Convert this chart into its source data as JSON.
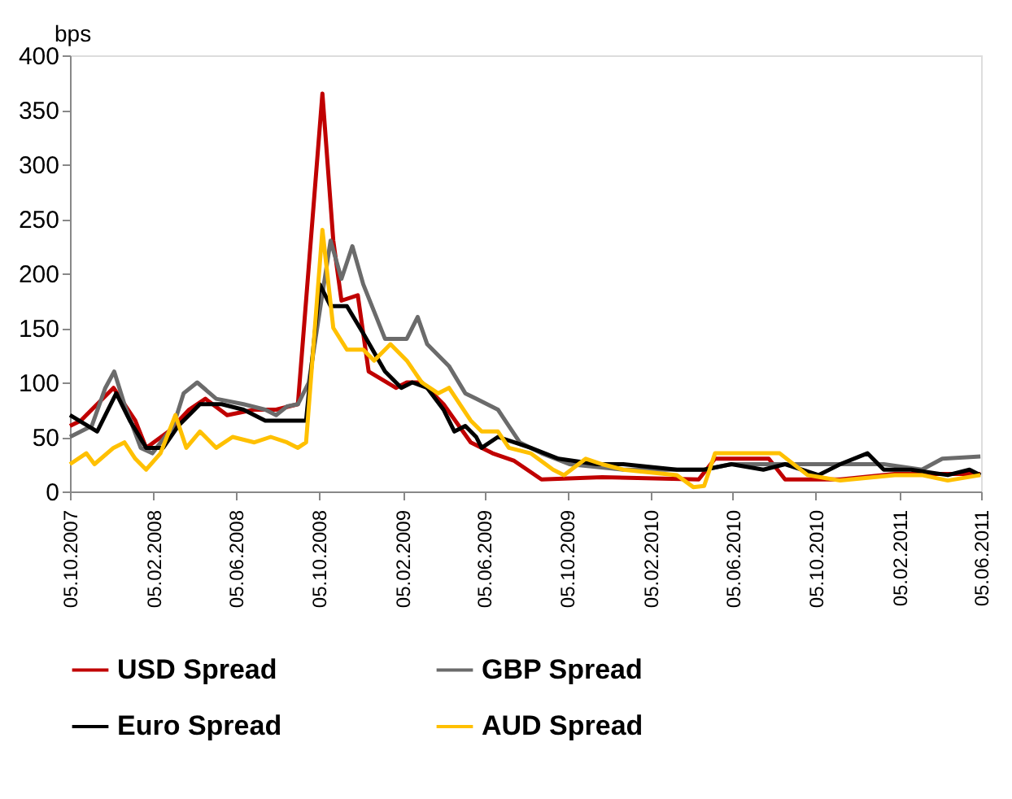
{
  "chart_data": {
    "type": "line",
    "ylabel": "bps",
    "xlim": [
      "2007-10-05",
      "2011-06-05"
    ],
    "xticks": [
      {
        "value": "2007-10-05",
        "label": "05.10.2007"
      },
      {
        "value": "2008-02-05",
        "label": "05.02.2008"
      },
      {
        "value": "2008-06-05",
        "label": "05.06.2008"
      },
      {
        "value": "2008-10-05",
        "label": "05.10.2008"
      },
      {
        "value": "2009-02-05",
        "label": "05.02.2009"
      },
      {
        "value": "2009-06-05",
        "label": "05.06.2009"
      },
      {
        "value": "2009-10-05",
        "label": "05.10.2009"
      },
      {
        "value": "2010-02-05",
        "label": "05.02.2010"
      },
      {
        "value": "2010-06-05",
        "label": "05.06.2010"
      },
      {
        "value": "2010-10-05",
        "label": "05.10.2010"
      },
      {
        "value": "2011-02-05",
        "label": "05.02.2011"
      },
      {
        "value": "2011-06-05",
        "label": "05.06.2011"
      }
    ],
    "ylim": [
      0,
      400
    ],
    "yticks": [
      0,
      50,
      100,
      150,
      200,
      250,
      300,
      350,
      400
    ],
    "grid": false,
    "legend": "bottom",
    "marker": "none",
    "line_style": "solid",
    "series": [
      {
        "name": "USD Spread",
        "color": "#c00000",
        "x": [
          "2007-10-05",
          "2007-10-21",
          "2007-12-08",
          "2008-01-09",
          "2008-01-25",
          "2008-02-27",
          "2008-03-28",
          "2008-04-21",
          "2008-05-23",
          "2008-07-02",
          "2008-08-03",
          "2008-09-04",
          "2008-10-10",
          "2008-10-26",
          "2008-11-07",
          "2008-12-01",
          "2008-12-17",
          "2009-01-26",
          "2009-02-11",
          "2009-03-05",
          "2009-04-06",
          "2009-05-16",
          "2009-06-17",
          "2009-07-19",
          "2009-08-28",
          "2009-11-25",
          "2010-04-16",
          "2010-05-10",
          "2010-07-28",
          "2010-08-21",
          "2010-11-10",
          "2011-01-29",
          "2011-06-04"
        ],
        "values": [
          60,
          65,
          95,
          65,
          40,
          55,
          75,
          85,
          70,
          75,
          75,
          80,
          365,
          230,
          175,
          180,
          110,
          95,
          100,
          100,
          80,
          45,
          35,
          28,
          11,
          13,
          11,
          30,
          30,
          11,
          11,
          16,
          16
        ]
      },
      {
        "name": "GBP Spread",
        "color": "#6b6b6b",
        "x": [
          "2007-10-05",
          "2007-11-06",
          "2007-11-26",
          "2007-12-09",
          "2007-12-24",
          "2008-01-17",
          "2008-02-03",
          "2008-03-05",
          "2008-03-20",
          "2008-04-09",
          "2008-05-07",
          "2008-06-16",
          "2008-07-18",
          "2008-08-03",
          "2008-08-19",
          "2008-09-04",
          "2008-09-20",
          "2008-10-06",
          "2008-10-22",
          "2008-11-07",
          "2008-11-23",
          "2008-12-09",
          "2008-12-25",
          "2009-01-10",
          "2009-02-11",
          "2009-02-27",
          "2009-03-13",
          "2009-04-14",
          "2009-05-08",
          "2009-05-24",
          "2009-06-25",
          "2009-07-11",
          "2009-07-27",
          "2009-08-28",
          "2009-10-08",
          "2009-12-26",
          "2010-03-15",
          "2010-04-24",
          "2010-06-03",
          "2010-08-21",
          "2010-10-01",
          "2010-11-10",
          "2011-01-13",
          "2011-03-10",
          "2011-04-09",
          "2011-06-04"
        ],
        "values": [
          50,
          60,
          95,
          110,
          80,
          40,
          35,
          60,
          90,
          100,
          85,
          80,
          75,
          70,
          78,
          80,
          100,
          165,
          230,
          195,
          225,
          190,
          165,
          140,
          140,
          160,
          135,
          115,
          90,
          85,
          75,
          60,
          45,
          35,
          25,
          20,
          20,
          20,
          25,
          25,
          25,
          25,
          25,
          20,
          30,
          32
        ]
      },
      {
        "name": "Euro Spread",
        "color": "#000000",
        "x": [
          "2007-10-05",
          "2007-11-14",
          "2007-12-12",
          "2008-01-01",
          "2008-01-25",
          "2008-02-19",
          "2008-03-12",
          "2008-04-13",
          "2008-05-15",
          "2008-06-16",
          "2008-07-18",
          "2008-08-19",
          "2008-09-16",
          "2008-10-06",
          "2008-10-22",
          "2008-11-15",
          "2008-12-09",
          "2009-01-10",
          "2009-02-03",
          "2009-02-19",
          "2009-03-13",
          "2009-04-06",
          "2009-04-22",
          "2009-05-08",
          "2009-05-24",
          "2009-06-01",
          "2009-06-25",
          "2009-07-19",
          "2009-08-12",
          "2009-09-22",
          "2009-11-17",
          "2009-12-26",
          "2010-03-15",
          "2010-04-24",
          "2010-06-03",
          "2010-07-20",
          "2010-08-21",
          "2010-10-09",
          "2010-11-10",
          "2010-12-20",
          "2011-01-13",
          "2011-02-22",
          "2011-04-17",
          "2011-05-19",
          "2011-06-04"
        ],
        "values": [
          70,
          55,
          90,
          65,
          40,
          40,
          60,
          80,
          80,
          75,
          65,
          65,
          65,
          190,
          170,
          170,
          145,
          110,
          95,
          100,
          95,
          75,
          55,
          60,
          50,
          40,
          50,
          45,
          40,
          30,
          25,
          25,
          20,
          20,
          25,
          20,
          25,
          15,
          25,
          35,
          20,
          20,
          15,
          20,
          15
        ]
      },
      {
        "name": "AUD Spread",
        "color": "#ffc000",
        "x": [
          "2007-10-05",
          "2007-10-29",
          "2007-11-10",
          "2007-12-08",
          "2007-12-24",
          "2008-01-09",
          "2008-01-25",
          "2008-02-15",
          "2008-03-08",
          "2008-03-24",
          "2008-04-13",
          "2008-05-07",
          "2008-05-31",
          "2008-07-02",
          "2008-07-26",
          "2008-08-19",
          "2008-09-04",
          "2008-09-16",
          "2008-10-10",
          "2008-10-26",
          "2008-11-15",
          "2008-12-09",
          "2008-12-25",
          "2009-01-18",
          "2009-02-11",
          "2009-03-05",
          "2009-03-29",
          "2009-04-14",
          "2009-05-16",
          "2009-06-01",
          "2009-06-25",
          "2009-07-11",
          "2009-08-12",
          "2009-09-14",
          "2009-09-30",
          "2009-11-01",
          "2009-11-25",
          "2009-12-26",
          "2010-03-15",
          "2010-04-08",
          "2010-04-24",
          "2010-05-10",
          "2010-08-13",
          "2010-09-23",
          "2010-11-10",
          "2011-01-29",
          "2011-03-10",
          "2011-04-17",
          "2011-06-04"
        ],
        "values": [
          25,
          35,
          25,
          40,
          45,
          30,
          20,
          35,
          70,
          40,
          55,
          40,
          50,
          45,
          50,
          45,
          40,
          45,
          240,
          150,
          130,
          130,
          120,
          135,
          120,
          100,
          90,
          95,
          65,
          55,
          55,
          40,
          35,
          20,
          15,
          30,
          25,
          20,
          15,
          4,
          5,
          35,
          35,
          15,
          10,
          15,
          15,
          10,
          15
        ]
      }
    ]
  }
}
